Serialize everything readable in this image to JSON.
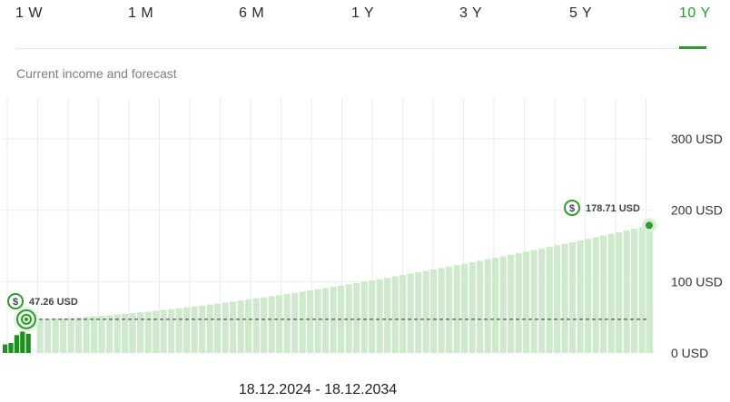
{
  "tabs": [
    {
      "label": "1 W",
      "active": false
    },
    {
      "label": "1 M",
      "active": false
    },
    {
      "label": "6 M",
      "active": false
    },
    {
      "label": "1 Y",
      "active": false
    },
    {
      "label": "3 Y",
      "active": false
    },
    {
      "label": "5 Y",
      "active": false
    },
    {
      "label": "10 Y",
      "active": true
    }
  ],
  "subtitle": "Current income and forecast",
  "date_range": "18.12.2024 - 18.12.2034",
  "colors": {
    "accent": "#2e9b2e",
    "bar_past": "#1f8f1f",
    "bar_forecast": "#cfe9cd",
    "grid": "#e8eeee",
    "current_line": "#333333"
  },
  "chart_data": {
    "type": "bar",
    "ylim": [
      0,
      300
    ],
    "yticks": [
      {
        "value": 0,
        "label": "0 USD"
      },
      {
        "value": 100,
        "label": "100 USD"
      },
      {
        "value": 200,
        "label": "200 USD"
      },
      {
        "value": 300,
        "label": "300 USD"
      }
    ],
    "past_values": [
      12,
      14,
      25,
      30,
      27
    ],
    "forecast": {
      "count": 80,
      "start": 47.26,
      "end": 178.71
    },
    "current": {
      "value": 47.26,
      "label": "47.26 USD",
      "icon": "dollar-icon"
    },
    "final": {
      "value": 178.71,
      "label": "178.71 USD",
      "icon": "dollar-icon"
    },
    "grid": true
  }
}
